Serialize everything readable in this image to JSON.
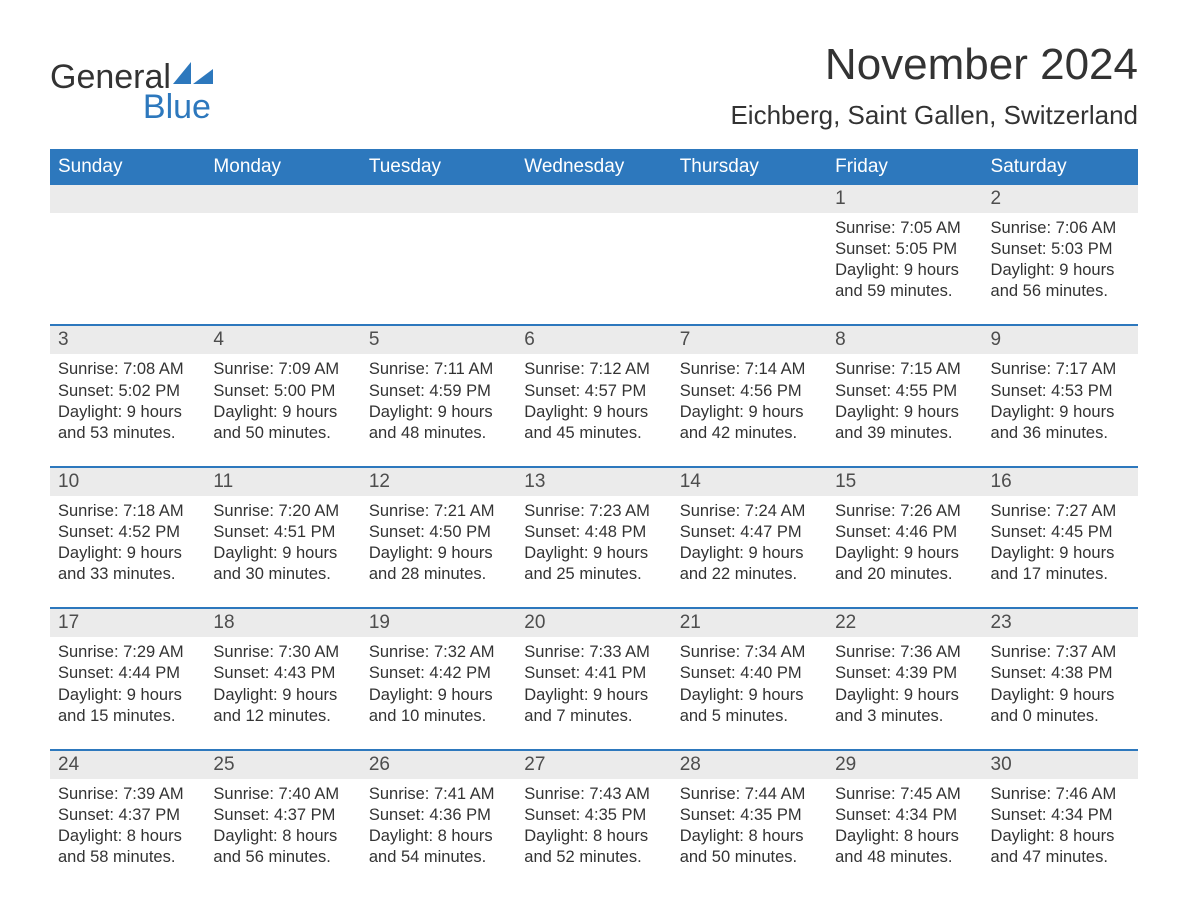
{
  "logo": {
    "word1": "General",
    "word2": "Blue"
  },
  "title": "November 2024",
  "location": "Eichberg, Saint Gallen, Switzerland",
  "colors": {
    "header_bg": "#2d78bd",
    "header_text": "#ffffff",
    "daynum_bg": "#ebebeb",
    "text": "#333333",
    "border": "#2d78bd",
    "background": "#ffffff"
  },
  "day_names": [
    "Sunday",
    "Monday",
    "Tuesday",
    "Wednesday",
    "Thursday",
    "Friday",
    "Saturday"
  ],
  "weeks": [
    [
      {
        "blank": true
      },
      {
        "blank": true
      },
      {
        "blank": true
      },
      {
        "blank": true
      },
      {
        "blank": true
      },
      {
        "n": "1",
        "sr": "7:05 AM",
        "ss": "5:05 PM",
        "dh": "9",
        "dm": "59"
      },
      {
        "n": "2",
        "sr": "7:06 AM",
        "ss": "5:03 PM",
        "dh": "9",
        "dm": "56"
      }
    ],
    [
      {
        "n": "3",
        "sr": "7:08 AM",
        "ss": "5:02 PM",
        "dh": "9",
        "dm": "53"
      },
      {
        "n": "4",
        "sr": "7:09 AM",
        "ss": "5:00 PM",
        "dh": "9",
        "dm": "50"
      },
      {
        "n": "5",
        "sr": "7:11 AM",
        "ss": "4:59 PM",
        "dh": "9",
        "dm": "48"
      },
      {
        "n": "6",
        "sr": "7:12 AM",
        "ss": "4:57 PM",
        "dh": "9",
        "dm": "45"
      },
      {
        "n": "7",
        "sr": "7:14 AM",
        "ss": "4:56 PM",
        "dh": "9",
        "dm": "42"
      },
      {
        "n": "8",
        "sr": "7:15 AM",
        "ss": "4:55 PM",
        "dh": "9",
        "dm": "39"
      },
      {
        "n": "9",
        "sr": "7:17 AM",
        "ss": "4:53 PM",
        "dh": "9",
        "dm": "36"
      }
    ],
    [
      {
        "n": "10",
        "sr": "7:18 AM",
        "ss": "4:52 PM",
        "dh": "9",
        "dm": "33"
      },
      {
        "n": "11",
        "sr": "7:20 AM",
        "ss": "4:51 PM",
        "dh": "9",
        "dm": "30"
      },
      {
        "n": "12",
        "sr": "7:21 AM",
        "ss": "4:50 PM",
        "dh": "9",
        "dm": "28"
      },
      {
        "n": "13",
        "sr": "7:23 AM",
        "ss": "4:48 PM",
        "dh": "9",
        "dm": "25"
      },
      {
        "n": "14",
        "sr": "7:24 AM",
        "ss": "4:47 PM",
        "dh": "9",
        "dm": "22"
      },
      {
        "n": "15",
        "sr": "7:26 AM",
        "ss": "4:46 PM",
        "dh": "9",
        "dm": "20"
      },
      {
        "n": "16",
        "sr": "7:27 AM",
        "ss": "4:45 PM",
        "dh": "9",
        "dm": "17"
      }
    ],
    [
      {
        "n": "17",
        "sr": "7:29 AM",
        "ss": "4:44 PM",
        "dh": "9",
        "dm": "15"
      },
      {
        "n": "18",
        "sr": "7:30 AM",
        "ss": "4:43 PM",
        "dh": "9",
        "dm": "12"
      },
      {
        "n": "19",
        "sr": "7:32 AM",
        "ss": "4:42 PM",
        "dh": "9",
        "dm": "10"
      },
      {
        "n": "20",
        "sr": "7:33 AM",
        "ss": "4:41 PM",
        "dh": "9",
        "dm": "7"
      },
      {
        "n": "21",
        "sr": "7:34 AM",
        "ss": "4:40 PM",
        "dh": "9",
        "dm": "5"
      },
      {
        "n": "22",
        "sr": "7:36 AM",
        "ss": "4:39 PM",
        "dh": "9",
        "dm": "3"
      },
      {
        "n": "23",
        "sr": "7:37 AM",
        "ss": "4:38 PM",
        "dh": "9",
        "dm": "0"
      }
    ],
    [
      {
        "n": "24",
        "sr": "7:39 AM",
        "ss": "4:37 PM",
        "dh": "8",
        "dm": "58"
      },
      {
        "n": "25",
        "sr": "7:40 AM",
        "ss": "4:37 PM",
        "dh": "8",
        "dm": "56"
      },
      {
        "n": "26",
        "sr": "7:41 AM",
        "ss": "4:36 PM",
        "dh": "8",
        "dm": "54"
      },
      {
        "n": "27",
        "sr": "7:43 AM",
        "ss": "4:35 PM",
        "dh": "8",
        "dm": "52"
      },
      {
        "n": "28",
        "sr": "7:44 AM",
        "ss": "4:35 PM",
        "dh": "8",
        "dm": "50"
      },
      {
        "n": "29",
        "sr": "7:45 AM",
        "ss": "4:34 PM",
        "dh": "8",
        "dm": "48"
      },
      {
        "n": "30",
        "sr": "7:46 AM",
        "ss": "4:34 PM",
        "dh": "8",
        "dm": "47"
      }
    ]
  ],
  "labels": {
    "sunrise": "Sunrise:",
    "sunset": "Sunset:",
    "daylight": "Daylight:",
    "hours": "hours",
    "and": "and",
    "minutes": "minutes."
  }
}
